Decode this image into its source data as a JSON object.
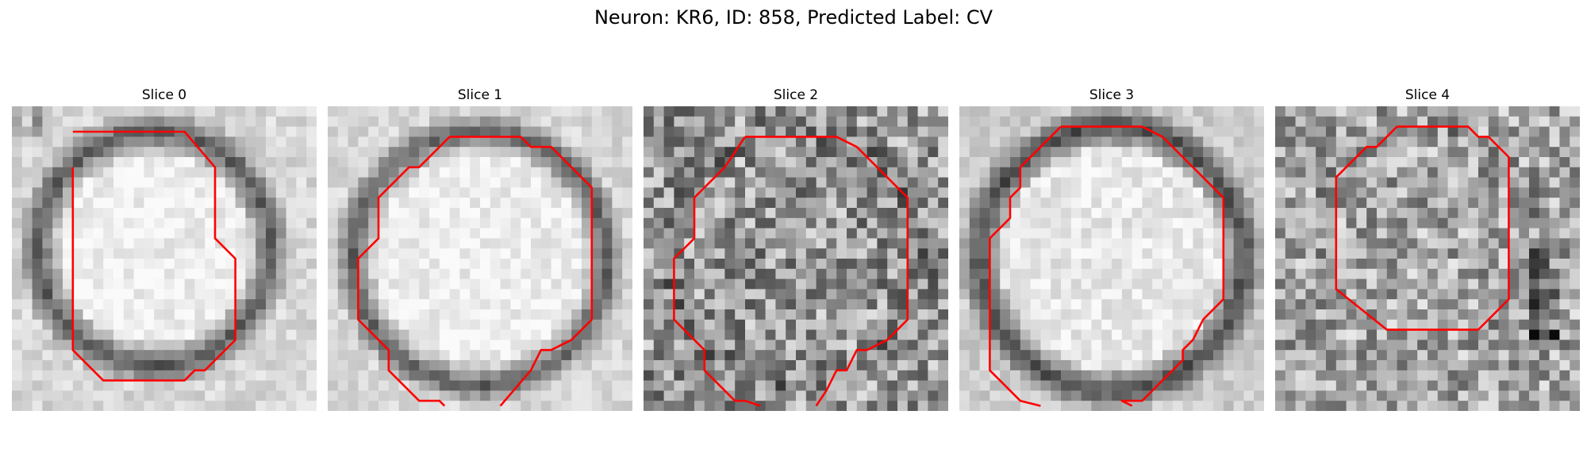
{
  "figure": {
    "title": "Neuron: KR6, ID: 858, Predicted Label: CV"
  },
  "colors": {
    "contour": "#ff0000"
  },
  "panels": [
    {
      "title": "Slice 0",
      "background_level": "bright",
      "noise": "low"
    },
    {
      "title": "Slice 1",
      "background_level": "bright",
      "noise": "low"
    },
    {
      "title": "Slice 2",
      "background_level": "mid",
      "noise": "high"
    },
    {
      "title": "Slice 3",
      "background_level": "bright",
      "noise": "low"
    },
    {
      "title": "Slice 4",
      "background_level": "mid",
      "noise": "high"
    }
  ]
}
